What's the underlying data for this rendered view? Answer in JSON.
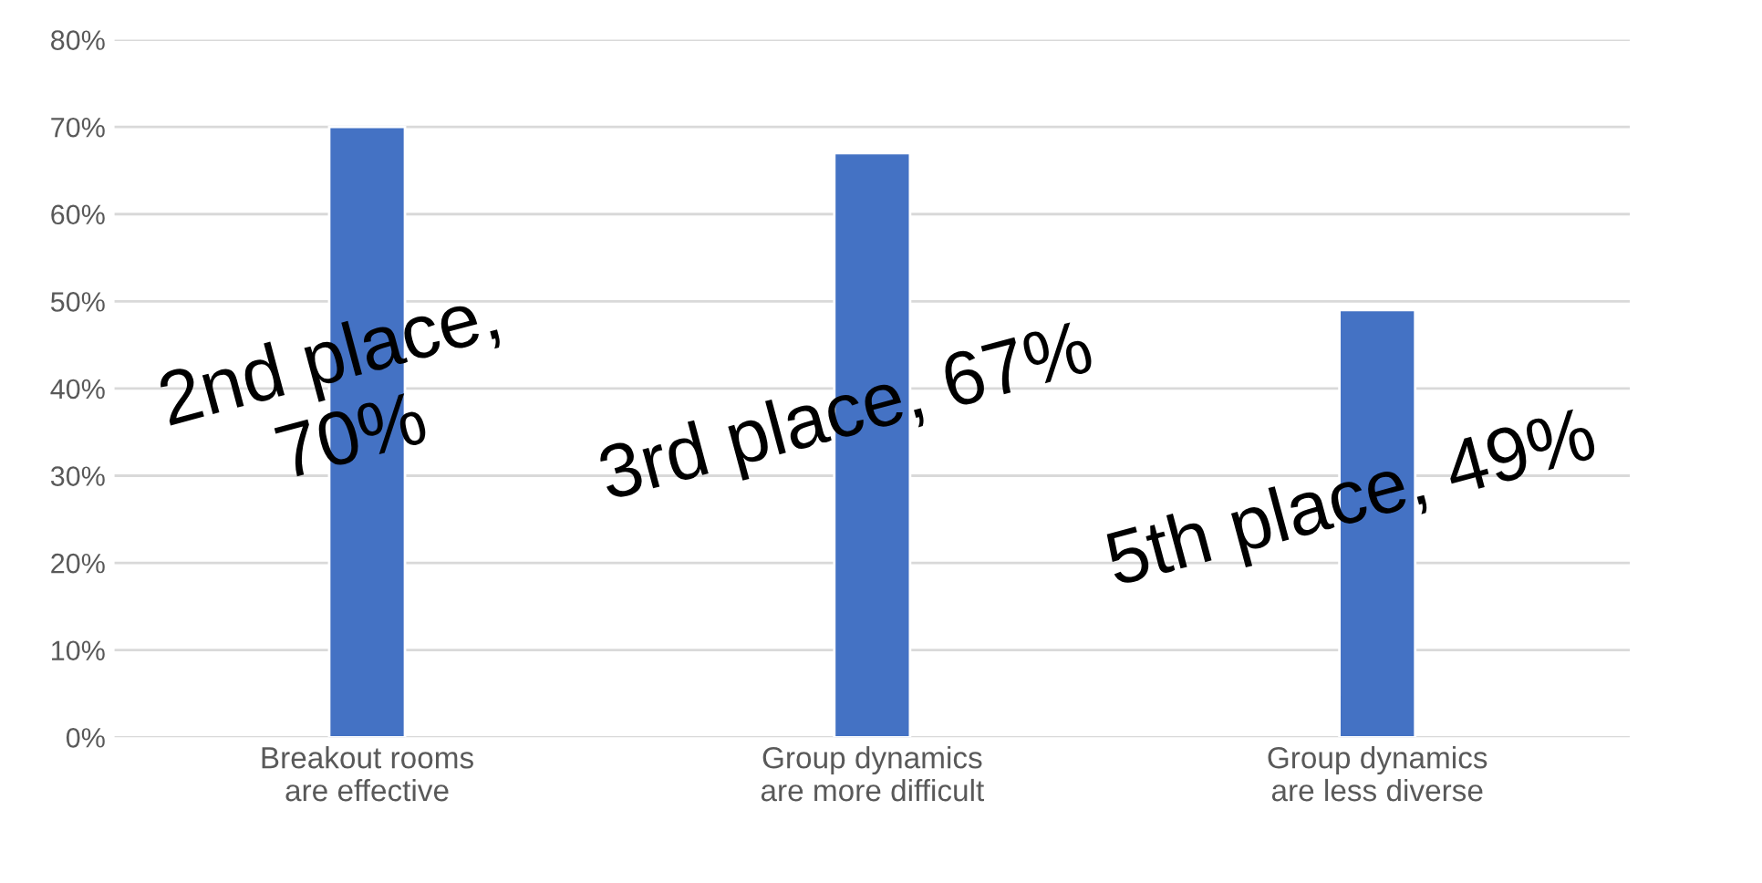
{
  "chart_data": {
    "type": "bar",
    "categories": [
      "Breakout rooms\nare effective",
      "Group dynamics\nare more difficult",
      "Group dynamics\nare less diverse"
    ],
    "values": [
      70,
      67,
      49
    ],
    "value_labels": [
      "2nd place,\n70%",
      "3rd place, 67%",
      "5th place, 49%"
    ],
    "color": "#4472c4",
    "ylim": [
      0,
      80
    ],
    "yticks": [
      {
        "value": 0,
        "label": "0%"
      },
      {
        "value": 10,
        "label": "10%"
      },
      {
        "value": 20,
        "label": "20%"
      },
      {
        "value": 30,
        "label": "30%"
      },
      {
        "value": 40,
        "label": "40%"
      },
      {
        "value": 50,
        "label": "50%"
      },
      {
        "value": 60,
        "label": "60%"
      },
      {
        "value": 70,
        "label": "70%"
      },
      {
        "value": 80,
        "label": "80%"
      }
    ],
    "grid": "y"
  }
}
